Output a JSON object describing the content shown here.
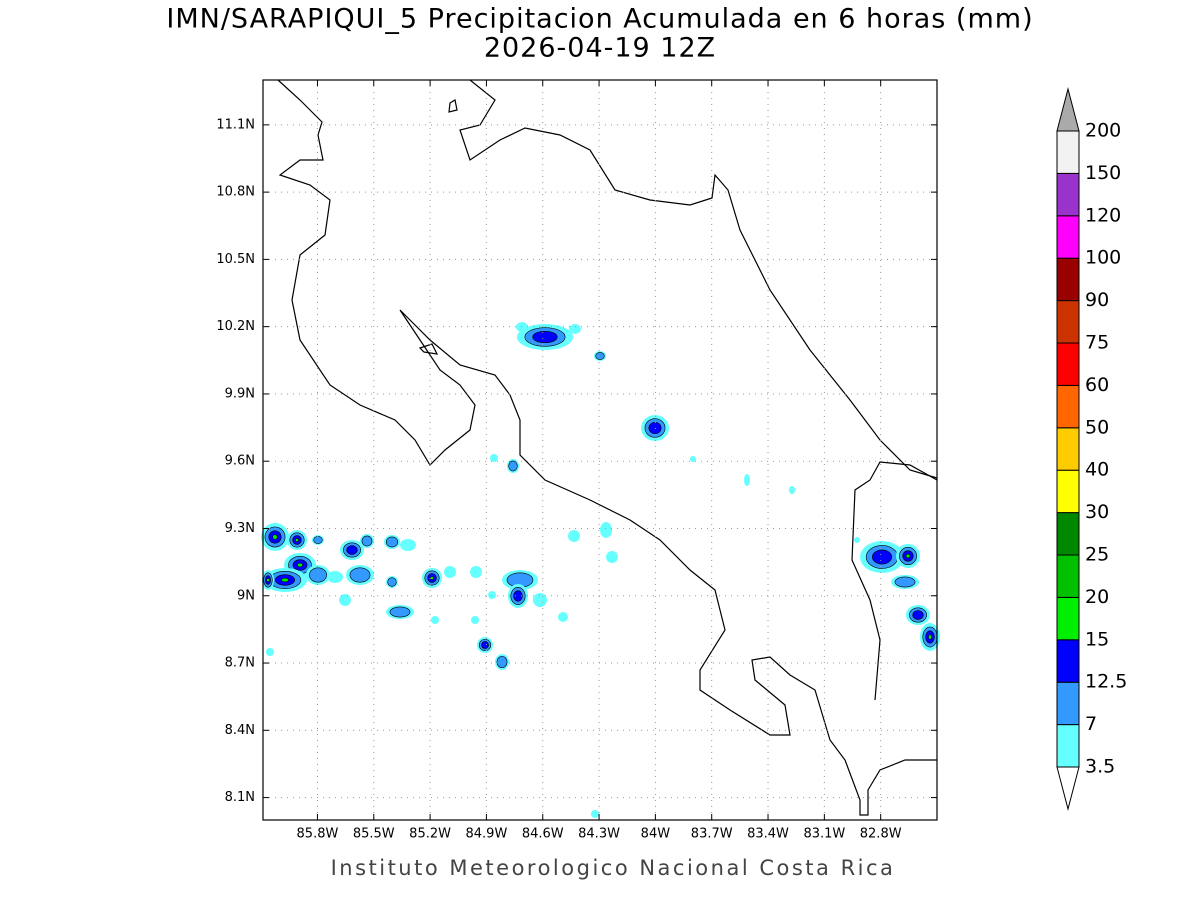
{
  "title": "IMN/SARAPIQUI_5 Precipitacion Acumulada en 6 horas (mm)",
  "subtitle": "2026-04-19 12Z",
  "footer": "Instituto Meteorologico Nacional Costa Rica",
  "map": {
    "xlim": [
      -86.09,
      -82.5
    ],
    "ylim": [
      8.0,
      11.3
    ],
    "grid": true,
    "xticks": [
      {
        "value": -85.8,
        "label": "85.8W"
      },
      {
        "value": -85.5,
        "label": "85.5W"
      },
      {
        "value": -85.2,
        "label": "85.2W"
      },
      {
        "value": -84.9,
        "label": "84.9W"
      },
      {
        "value": -84.6,
        "label": "84.6W"
      },
      {
        "value": -84.3,
        "label": "84.3W"
      },
      {
        "value": -84.0,
        "label": "84W"
      },
      {
        "value": -83.7,
        "label": "83.7W"
      },
      {
        "value": -83.4,
        "label": "83.4W"
      },
      {
        "value": -83.1,
        "label": "83.1W"
      },
      {
        "value": -82.8,
        "label": "82.8W"
      }
    ],
    "yticks": [
      {
        "value": 8.1,
        "label": "8.1N"
      },
      {
        "value": 8.4,
        "label": "8.4N"
      },
      {
        "value": 8.7,
        "label": "8.7N"
      },
      {
        "value": 9.0,
        "label": "9N"
      },
      {
        "value": 9.3,
        "label": "9.3N"
      },
      {
        "value": 9.6,
        "label": "9.6N"
      },
      {
        "value": 9.9,
        "label": "9.9N"
      },
      {
        "value": 10.2,
        "label": "10.2N"
      },
      {
        "value": 10.5,
        "label": "10.5N"
      },
      {
        "value": 10.8,
        "label": "10.8N"
      },
      {
        "value": 11.1,
        "label": "11.1N"
      }
    ]
  },
  "colorbar": {
    "levels": [
      3.5,
      7,
      12.5,
      15,
      20,
      25,
      30,
      40,
      50,
      60,
      75,
      90,
      100,
      120,
      150,
      200
    ],
    "colors": [
      "#66ffff",
      "#3399ff",
      "#0000ff",
      "#00ee00",
      "#00c000",
      "#008800",
      "#ffff00",
      "#ffcc00",
      "#ff6600",
      "#ff0000",
      "#cc3300",
      "#990000",
      "#ff00ff",
      "#9933cc",
      "#f2f2f2"
    ],
    "under_color": "#ffffff",
    "over_color": "#aaaaaa"
  }
}
